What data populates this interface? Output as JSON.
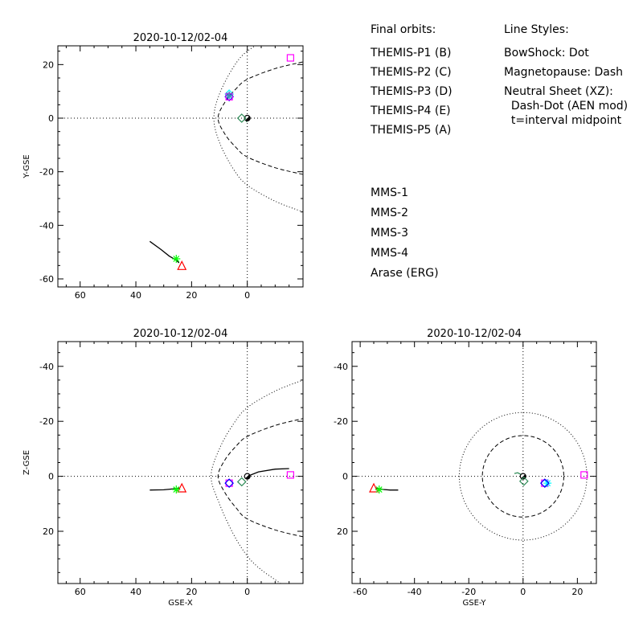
{
  "chart_data": [
    {
      "type": "scatter",
      "id": "xy",
      "title": "2020-10-12/02-04",
      "xlabel": "",
      "ylabel": "Y-GSE",
      "xlim": [
        68,
        -20
      ],
      "ylim": [
        27,
        -63
      ],
      "xticks": [
        60,
        40,
        20,
        0
      ],
      "yticks": [
        -60,
        -40,
        -20,
        0,
        20
      ],
      "xtick_labels": [
        "60",
        "40",
        "20",
        "0"
      ],
      "ytick_labels": [
        "-60",
        "-40",
        "-20",
        "0",
        "20"
      ],
      "boundaries": {
        "bowshock": {
          "x": [
            -20,
            -10,
            0,
            5,
            10,
            12,
            10,
            5,
            0,
            -10,
            -20
          ],
          "y": [
            -35,
            -31,
            -25,
            -19,
            -9,
            0,
            9,
            19,
            25,
            31,
            35
          ]
        },
        "magnetopause": {
          "x": [
            -20,
            -10,
            0,
            4,
            8,
            10.5,
            8,
            4,
            0,
            -10,
            -20
          ],
          "y": [
            -21,
            -18.5,
            -14.5,
            -11,
            -6,
            0,
            6,
            11,
            14.5,
            18.5,
            21
          ]
        }
      },
      "series": [
        {
          "marker": "triangle",
          "color": "#ff0000",
          "x": [
            23.5
          ],
          "y": [
            -55
          ]
        },
        {
          "marker": "asterisk",
          "color": "#00ff00",
          "x": [
            25.5
          ],
          "y": [
            -52.5
          ]
        },
        {
          "marker": "diamond",
          "color": "#00ffff",
          "x": [
            6.5
          ],
          "y": [
            9
          ]
        },
        {
          "marker": "diamond",
          "color": "#0000ff",
          "x": [
            6.5
          ],
          "y": [
            8
          ]
        },
        {
          "marker": "square",
          "color": "#ff00ff",
          "x": [
            6.5
          ],
          "y": [
            8
          ]
        },
        {
          "marker": "square",
          "color": "#ff00ff",
          "x": [
            -15.5
          ],
          "y": [
            22.5
          ]
        },
        {
          "marker": "asterisk",
          "color": "#4682b4",
          "x": [
            6.5
          ],
          "y": [
            8.5
          ]
        },
        {
          "marker": "diamond",
          "color": "#2e8b57",
          "x": [
            2
          ],
          "y": [
            0
          ]
        }
      ],
      "tracks": [
        {
          "color": "#000000",
          "x": [
            35,
            31,
            28,
            25.5,
            24.5
          ],
          "y": [
            -46,
            -49,
            -51.5,
            -53,
            -54
          ]
        },
        {
          "color": "#2e8b57",
          "x": [
            0.3,
            0.0,
            -0.3
          ],
          "y": [
            -1.5,
            -0.5,
            0.5
          ]
        }
      ],
      "earth": {
        "x": 0,
        "y": 0
      }
    },
    {
      "type": "scatter",
      "id": "xz",
      "title": "2020-10-12/02-04",
      "xlabel": "GSE-X",
      "ylabel": "Z-GSE",
      "xlim": [
        68,
        -20
      ],
      "ylim": [
        -49,
        39
      ],
      "xticks": [
        60,
        40,
        20,
        0
      ],
      "yticks": [
        20,
        0,
        -20,
        -40
      ],
      "xtick_labels": [
        "60",
        "40",
        "20",
        "0"
      ],
      "ytick_labels": [
        "20",
        "0",
        "-20",
        "-40"
      ],
      "boundaries": {
        "bowshock": {
          "x": [
            -12,
            -5,
            0,
            5,
            10,
            13,
            10,
            5,
            0,
            -10,
            -20
          ],
          "y": [
            39,
            34,
            29,
            21,
            10,
            0,
            -10,
            -19,
            -25,
            -31,
            -35
          ]
        },
        "magnetopause": {
          "x": [
            -20,
            -10,
            0,
            4,
            8,
            10.5,
            8,
            4,
            0,
            -10,
            -20
          ],
          "y": [
            22,
            19.5,
            15.5,
            11.5,
            6,
            0,
            -6,
            -11,
            -14.5,
            -18.5,
            -21
          ]
        }
      },
      "series": [
        {
          "marker": "triangle",
          "color": "#ff0000",
          "x": [
            23.5
          ],
          "y": [
            4.2
          ]
        },
        {
          "marker": "asterisk",
          "color": "#00ff00",
          "x": [
            25.5
          ],
          "y": [
            4.8
          ]
        },
        {
          "marker": "square",
          "color": "#ff00ff",
          "x": [
            6.5
          ],
          "y": [
            2.5
          ]
        },
        {
          "marker": "diamond",
          "color": "#0000ff",
          "x": [
            6.5
          ],
          "y": [
            2.5
          ]
        },
        {
          "marker": "square",
          "color": "#ff00ff",
          "x": [
            -15.5
          ],
          "y": [
            -0.5
          ]
        },
        {
          "marker": "diamond",
          "color": "#2e8b57",
          "x": [
            2
          ],
          "y": [
            2
          ]
        }
      ],
      "tracks": [
        {
          "color": "#000000",
          "x": [
            35,
            30,
            27,
            24.5
          ],
          "y": [
            5,
            4.9,
            4.6,
            4.3
          ]
        },
        {
          "color": "#000000",
          "x": [
            0,
            -4,
            -10,
            -15
          ],
          "y": [
            0,
            -1.6,
            -2.6,
            -2.8
          ]
        }
      ],
      "earth": {
        "x": 0,
        "y": 0
      }
    },
    {
      "type": "scatter",
      "id": "yz",
      "title": "2020-10-12/02-04",
      "xlabel": "GSE-Y",
      "ylabel": "",
      "xlim": [
        -63,
        27
      ],
      "ylim": [
        -49,
        39
      ],
      "xticks": [
        -60,
        -40,
        -20,
        0,
        20
      ],
      "yticks": [
        20,
        0,
        -20,
        -40
      ],
      "xtick_labels": [
        "-60",
        "-40",
        "-20",
        "0",
        "20"
      ],
      "ytick_labels": [
        "20",
        "0",
        "-20",
        "-40"
      ],
      "circles": {
        "bowshock_r": 23.5,
        "magnetopause_r": 15
      },
      "series": [
        {
          "marker": "triangle",
          "color": "#ff0000",
          "x": [
            -55
          ],
          "y": [
            4.2
          ]
        },
        {
          "marker": "asterisk",
          "color": "#00ff00",
          "x": [
            -53
          ],
          "y": [
            4.8
          ]
        },
        {
          "marker": "square",
          "color": "#ff00ff",
          "x": [
            8
          ],
          "y": [
            2.5
          ]
        },
        {
          "marker": "asterisk",
          "color": "#00ffff",
          "x": [
            9
          ],
          "y": [
            2.5
          ]
        },
        {
          "marker": "diamond",
          "color": "#0000ff",
          "x": [
            8
          ],
          "y": [
            2.5
          ]
        },
        {
          "marker": "square",
          "color": "#ff00ff",
          "x": [
            22.5
          ],
          "y": [
            -0.5
          ]
        },
        {
          "marker": "diamond",
          "color": "#2e8b57",
          "x": [
            0.3
          ],
          "y": [
            1.8
          ]
        }
      ],
      "tracks": [
        {
          "color": "#000000",
          "x": [
            -46,
            -49,
            -51.5,
            -54
          ],
          "y": [
            5,
            5,
            4.8,
            4.3
          ]
        },
        {
          "color": "#2e8b57",
          "x": [
            -3.2,
            -2,
            -1,
            0
          ],
          "y": [
            -1,
            -1.3,
            -0.8,
            0
          ]
        }
      ],
      "earth": {
        "x": 0,
        "y": 0
      }
    }
  ],
  "legend": {
    "final_orbits_title": "Final orbits:",
    "line_styles_title": "Line Styles:",
    "themis": [
      {
        "label": "THEMIS-P1 (B)",
        "color": "#ff0000"
      },
      {
        "label": "THEMIS-P2 (C)",
        "color": "#00ff00"
      },
      {
        "label": "THEMIS-P3 (D)",
        "color": "#00ffff"
      },
      {
        "label": "THEMIS-P4 (E)",
        "color": "#0000ff"
      },
      {
        "label": "THEMIS-P5 (A)",
        "color": "#ff00ff"
      }
    ],
    "mms": [
      {
        "label": "MMS-1",
        "color": "#ffc800"
      },
      {
        "label": "MMS-2",
        "color": "#d2504e"
      },
      {
        "label": "MMS-3",
        "color": "#4682dc"
      },
      {
        "label": "MMS-4",
        "color": "#9646dc"
      },
      {
        "label": "Arase (ERG)",
        "color": "#2e8b57"
      }
    ],
    "styles": [
      "BowShock: Dot",
      "Magnetopause: Dash",
      "Neutral Sheet (XZ):",
      "  Dash-Dot (AEN mod)",
      "  t=interval midpoint"
    ]
  }
}
